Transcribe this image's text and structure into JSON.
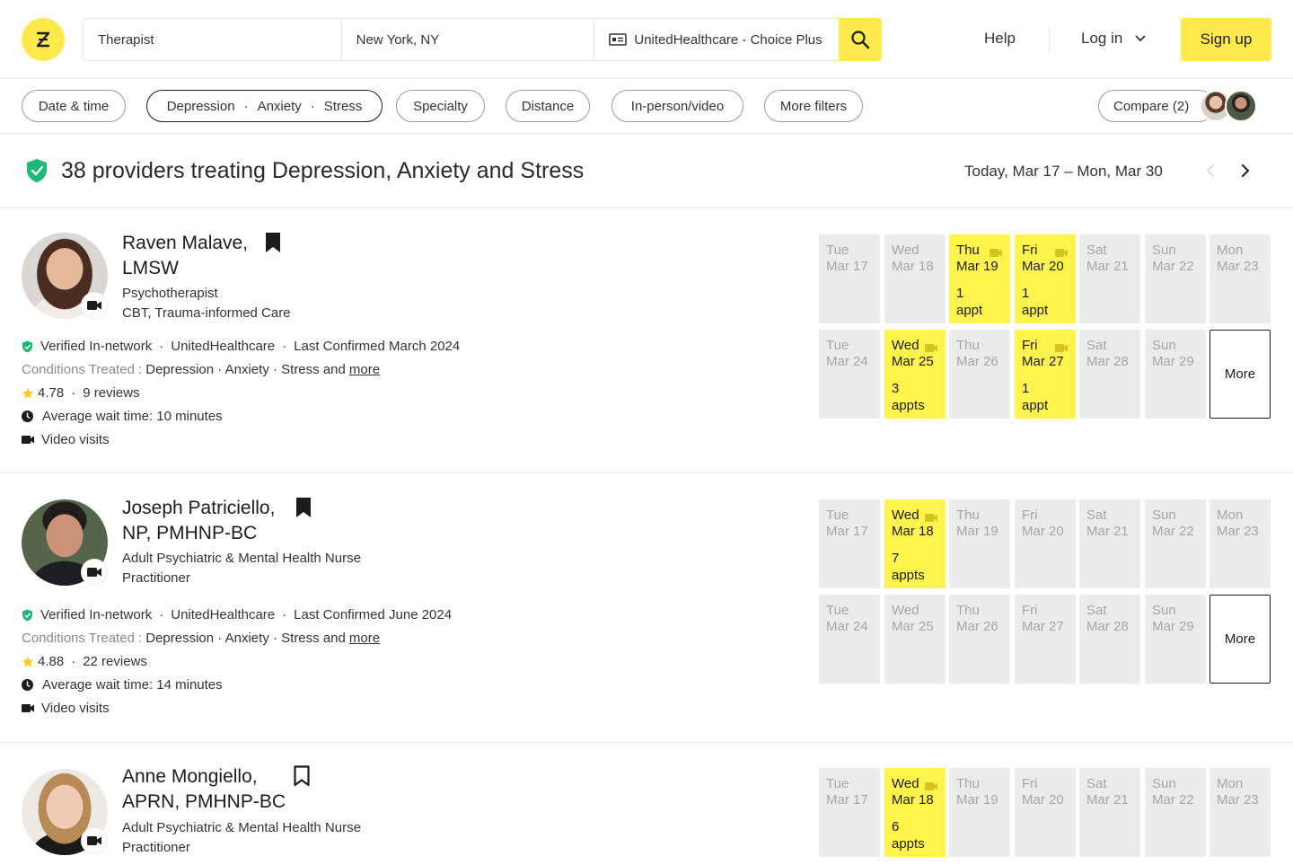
{
  "header": {
    "search_specialty": "Therapist",
    "search_location": "New York, NY",
    "search_insurance": "UnitedHealthcare - Choice Plus",
    "help": "Help",
    "login": "Log in",
    "signup": "Sign up"
  },
  "filters": {
    "date_time": "Date & time",
    "conditions": [
      "Depression",
      "Anxiety",
      "Stress"
    ],
    "specialty": "Specialty",
    "distance": "Distance",
    "in_person_video": "In-person/video",
    "more_filters": "More filters",
    "compare": "Compare (2)"
  },
  "results": {
    "title": "38 providers treating Depression, Anxiety and Stress",
    "date_range": "Today, Mar 17 – Mon, Mar 30"
  },
  "providers": [
    {
      "name_line1": "Raven Malave,",
      "name_line2": "LMSW",
      "type_line1": "Psychotherapist",
      "type_line2": "CBT, Trauma-informed Care",
      "verified": "Verified In-network",
      "insurance": "UnitedHealthcare",
      "confirmed": "Last Confirmed March 2024",
      "conditions_label": "Conditions Treated :",
      "conditions": "Depression · Anxiety · Stress and",
      "conditions_more": "more",
      "rating": "4.78",
      "reviews": "9 reviews",
      "wait": "Average wait time: 10 minutes",
      "video": "Video visits",
      "bookmarked": true
    },
    {
      "name_line1": "Joseph Patriciello,",
      "name_line2": "NP, PMHNP-BC",
      "type_line1": "Adult Psychiatric & Mental Health Nurse",
      "type_line2": "Practitioner",
      "verified": "Verified In-network",
      "insurance": "UnitedHealthcare",
      "confirmed": "Last Confirmed June 2024",
      "conditions_label": "Conditions Treated :",
      "conditions": "Depression · Anxiety · Stress and",
      "conditions_more": "more",
      "rating": "4.88",
      "reviews": "22 reviews",
      "wait": "Average wait time: 14 minutes",
      "video": "Video visits",
      "bookmarked": true
    },
    {
      "name_line1": "Anne Mongiello,",
      "name_line2": "APRN, PMHNP-BC",
      "type_line1": "Adult Psychiatric & Mental Health Nurse",
      "type_line2": "Practitioner",
      "bookmarked": false
    }
  ],
  "calendar": {
    "more": "More",
    "week1": [
      {
        "d": "Tue",
        "m": "Mar 17"
      },
      {
        "d": "Wed",
        "m": "Mar 18"
      },
      {
        "d": "Thu",
        "m": "Mar 19"
      },
      {
        "d": "Fri",
        "m": "Mar 20"
      },
      {
        "d": "Sat",
        "m": "Mar 21"
      },
      {
        "d": "Sun",
        "m": "Mar 22"
      },
      {
        "d": "Mon",
        "m": "Mar 23"
      }
    ],
    "week2": [
      {
        "d": "Tue",
        "m": "Mar 24"
      },
      {
        "d": "Wed",
        "m": "Mar 25"
      },
      {
        "d": "Thu",
        "m": "Mar 26"
      },
      {
        "d": "Fri",
        "m": "Mar 27"
      },
      {
        "d": "Sat",
        "m": "Mar 28"
      },
      {
        "d": "Sun",
        "m": "Mar 29"
      }
    ],
    "availability": [
      {
        "w1": [
          null,
          null,
          [
            "1",
            "appt"
          ],
          [
            "1",
            "appt"
          ],
          null,
          null,
          null
        ],
        "w2": [
          null,
          [
            "3",
            "appts"
          ],
          null,
          [
            "1",
            "appt"
          ],
          null,
          null
        ]
      },
      {
        "w1": [
          null,
          [
            "7",
            "appts"
          ],
          null,
          null,
          null,
          null,
          null
        ],
        "w2": [
          null,
          null,
          null,
          null,
          null,
          null
        ]
      },
      {
        "w1": [
          null,
          [
            "6",
            "appts"
          ],
          null,
          null,
          null,
          null,
          null
        ]
      }
    ]
  },
  "colors": {
    "brand_yellow": "#ffe94d",
    "slot_yellow": "#fff44d",
    "verified_green": "#1fb877"
  }
}
